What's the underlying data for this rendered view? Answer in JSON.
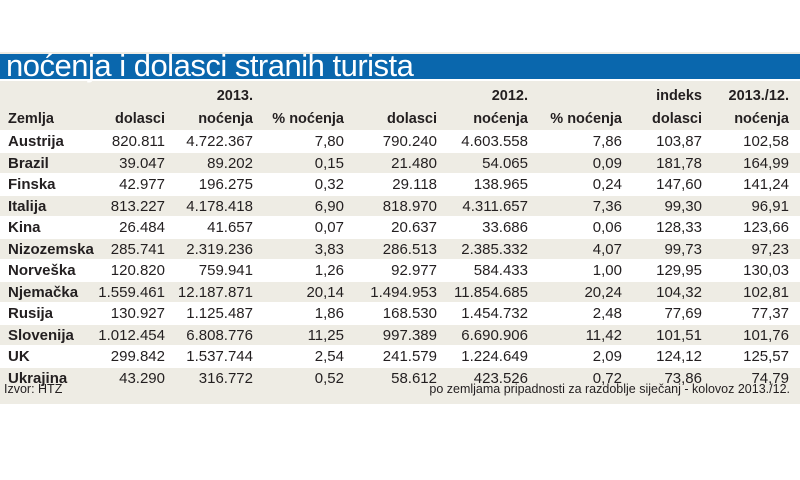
{
  "title": "noćenja i dolasci stranih turista",
  "chart_data": {
    "type": "table",
    "title": "noćenja i dolasci stranih turista",
    "group_headers": [
      "2013.",
      "2012.",
      "indeks",
      "2013./12."
    ],
    "columns": [
      "Zemlja",
      "dolasci",
      "noćenja",
      "% noćenja",
      "dolasci",
      "noćenja",
      "% noćenja",
      "dolasci",
      "noćenja"
    ],
    "rows": [
      [
        "Austrija",
        "820.811",
        "4.722.367",
        "7,80",
        "790.240",
        "4.603.558",
        "7,86",
        "103,87",
        "102,58"
      ],
      [
        "Brazil",
        "39.047",
        "89.202",
        "0,15",
        "21.480",
        "54.065",
        "0,09",
        "181,78",
        "164,99"
      ],
      [
        "Finska",
        "42.977",
        "196.275",
        "0,32",
        "29.118",
        "138.965",
        "0,24",
        "147,60",
        "141,24"
      ],
      [
        "Italija",
        "813.227",
        "4.178.418",
        "6,90",
        "818.970",
        "4.311.657",
        "7,36",
        "99,30",
        "96,91"
      ],
      [
        "Kina",
        "26.484",
        "41.657",
        "0,07",
        "20.637",
        "33.686",
        "0,06",
        "128,33",
        "123,66"
      ],
      [
        "Nizozemska",
        "285.741",
        "2.319.236",
        "3,83",
        "286.513",
        "2.385.332",
        "4,07",
        "99,73",
        "97,23"
      ],
      [
        "Norveška",
        "120.820",
        "759.941",
        "1,26",
        "92.977",
        "584.433",
        "1,00",
        "129,95",
        "130,03"
      ],
      [
        "Njemačka",
        "1.559.461",
        "12.187.871",
        "20,14",
        "1.494.953",
        "11.854.685",
        "20,24",
        "104,32",
        "102,81"
      ],
      [
        "Rusija",
        "130.927",
        "1.125.487",
        "1,86",
        "168.530",
        "1.454.732",
        "2,48",
        "77,69",
        "77,37"
      ],
      [
        "Slovenija",
        "1.012.454",
        "6.808.776",
        "11,25",
        "997.389",
        "6.690.906",
        "11,42",
        "101,51",
        "101,76"
      ],
      [
        "UK",
        "299.842",
        "1.537.744",
        "2,54",
        "241.579",
        "1.224.649",
        "2,09",
        "124,12",
        "125,57"
      ],
      [
        "Ukrajina",
        "43.290",
        "316.772",
        "0,52",
        "58.612",
        "423.526",
        "0,72",
        "73,86",
        "74,79"
      ]
    ],
    "source": "Izvor: HTZ",
    "note": "po zemljama pripadnosti za razdoblje siječanj - kolovoz 2013./12."
  },
  "colors": {
    "title_bar": "#0a67ad",
    "panel": "#eeece4",
    "row_alt": "#ffffff"
  }
}
